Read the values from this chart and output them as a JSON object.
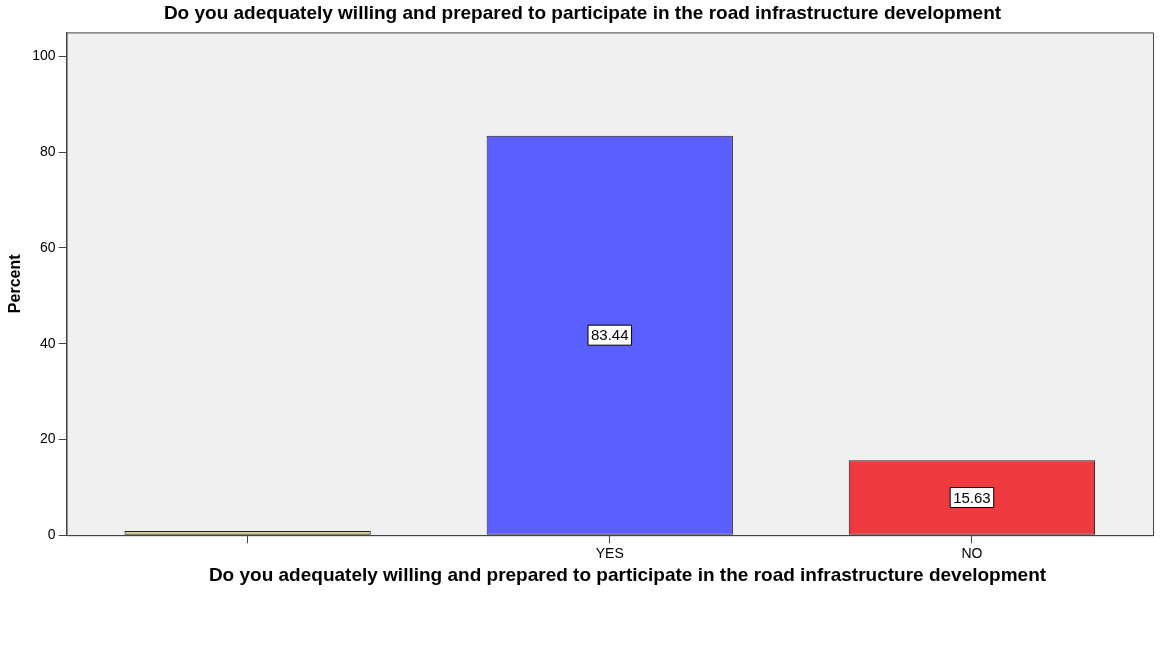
{
  "chart_data": {
    "type": "bar",
    "title": "Do you adequately willing and prepared to participate in the road infrastructure development",
    "xlabel": "Do you adequately willing and prepared to participate in the road infrastructure development",
    "ylabel": "Percent",
    "categories": [
      null,
      "YES",
      "NO"
    ],
    "values": [
      0.9,
      83.44,
      15.63
    ],
    "colors": [
      "#d2cc8c",
      "#5b5fff",
      "#ef3a3f"
    ],
    "value_labels": [
      null,
      "83.44",
      "15.63"
    ],
    "ylim": [
      0,
      105
    ],
    "yticks": [
      0,
      20,
      40,
      60,
      80,
      100
    ],
    "grid": false,
    "legend": false
  }
}
